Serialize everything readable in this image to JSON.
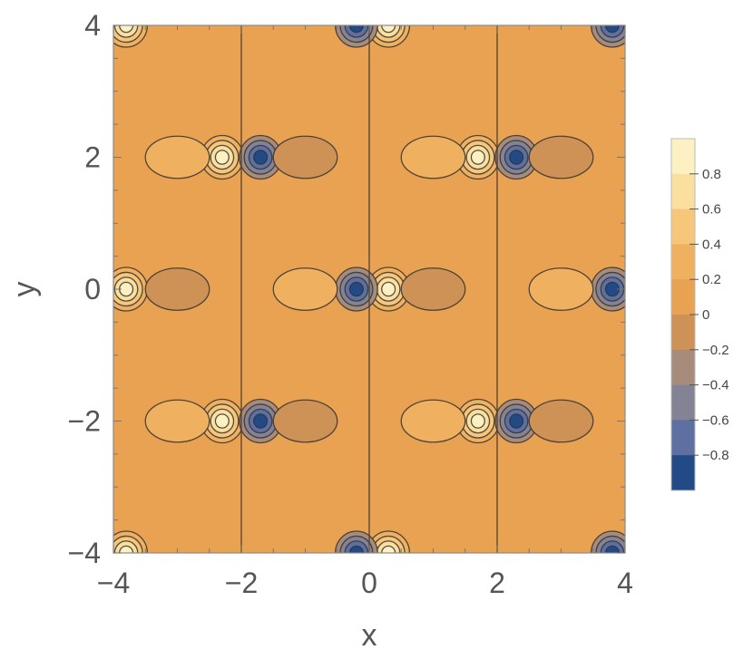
{
  "chart_data": {
    "type": "contour",
    "xlabel": "x",
    "ylabel": "y",
    "xlim": [
      -4,
      4
    ],
    "ylim": [
      -4,
      4
    ],
    "x_ticks": [
      -4,
      -2,
      0,
      2,
      4
    ],
    "y_ticks": [
      -4,
      -2,
      0,
      2,
      4
    ],
    "x_tick_labels": [
      "−4",
      "−2",
      "0",
      "2",
      "4"
    ],
    "y_tick_labels": [
      "−4",
      "−2",
      "0",
      "2",
      "4"
    ],
    "background_level": 0.1,
    "legend": {
      "placement": "right",
      "levels": [
        0.8,
        0.6,
        0.4,
        0.2,
        0,
        -0.2,
        -0.4,
        -0.6,
        -0.8
      ],
      "labels": [
        "0.8",
        "0.6",
        "0.4",
        "0.2",
        "0",
        "−0.2",
        "−0.4",
        "−0.6",
        "−0.8"
      ],
      "band_colors": [
        "#fdf1c4",
        "#fbdf9e",
        "#f6c77b",
        "#efb060",
        "#e8a252",
        "#cf9256",
        "#a78c7c",
        "#838395",
        "#5e6fa2",
        "#214a86"
      ]
    },
    "vertical_lines_x": [
      -2,
      0,
      2
    ],
    "features": [
      {
        "kind": "peak",
        "x": -3.8,
        "y": 0,
        "value": 0.95
      },
      {
        "kind": "peak",
        "x": -2.3,
        "y": 2,
        "value": 0.95
      },
      {
        "kind": "peak",
        "x": -2.3,
        "y": -2,
        "value": 0.95
      },
      {
        "kind": "peak",
        "x": 0.3,
        "y": 0,
        "value": 0.95
      },
      {
        "kind": "peak",
        "x": 1.7,
        "y": 2,
        "value": 0.95
      },
      {
        "kind": "peak",
        "x": 1.7,
        "y": -2,
        "value": 0.95
      },
      {
        "kind": "peak",
        "x": -3.8,
        "y": 4,
        "value": 0.95
      },
      {
        "kind": "peak",
        "x": -3.8,
        "y": -4,
        "value": 0.95
      },
      {
        "kind": "peak",
        "x": 0.3,
        "y": 4,
        "value": 0.95
      },
      {
        "kind": "peak",
        "x": 0.3,
        "y": -4,
        "value": 0.95
      },
      {
        "kind": "trough",
        "x": -1.7,
        "y": 2,
        "value": -0.95
      },
      {
        "kind": "trough",
        "x": -1.7,
        "y": -2,
        "value": -0.95
      },
      {
        "kind": "trough",
        "x": -0.2,
        "y": 0,
        "value": -0.95
      },
      {
        "kind": "trough",
        "x": 2.3,
        "y": 2,
        "value": -0.95
      },
      {
        "kind": "trough",
        "x": 2.3,
        "y": -2,
        "value": -0.95
      },
      {
        "kind": "trough",
        "x": 3.8,
        "y": 0,
        "value": -0.95
      },
      {
        "kind": "trough",
        "x": -0.2,
        "y": 4,
        "value": -0.95
      },
      {
        "kind": "trough",
        "x": -0.2,
        "y": -4,
        "value": -0.95
      },
      {
        "kind": "trough",
        "x": 3.8,
        "y": 4,
        "value": -0.95
      },
      {
        "kind": "trough",
        "x": 3.8,
        "y": -4,
        "value": -0.95
      },
      {
        "kind": "lobe",
        "x": -3.0,
        "y": 0,
        "value": -0.1
      },
      {
        "kind": "lobe",
        "x": -1.0,
        "y": 0,
        "value": 0.25
      },
      {
        "kind": "lobe",
        "x": 1.0,
        "y": 0,
        "value": -0.1
      },
      {
        "kind": "lobe",
        "x": 3.0,
        "y": 0,
        "value": 0.25
      },
      {
        "kind": "lobe",
        "x": -3.0,
        "y": 2,
        "value": 0.25
      },
      {
        "kind": "lobe",
        "x": -1.0,
        "y": 2,
        "value": -0.1
      },
      {
        "kind": "lobe",
        "x": 1.0,
        "y": 2,
        "value": 0.25
      },
      {
        "kind": "lobe",
        "x": 3.0,
        "y": 2,
        "value": -0.1
      },
      {
        "kind": "lobe",
        "x": -3.0,
        "y": -2,
        "value": 0.25
      },
      {
        "kind": "lobe",
        "x": -1.0,
        "y": -2,
        "value": -0.1
      },
      {
        "kind": "lobe",
        "x": 1.0,
        "y": -2,
        "value": 0.25
      },
      {
        "kind": "lobe",
        "x": 3.0,
        "y": -2,
        "value": -0.1
      }
    ]
  }
}
